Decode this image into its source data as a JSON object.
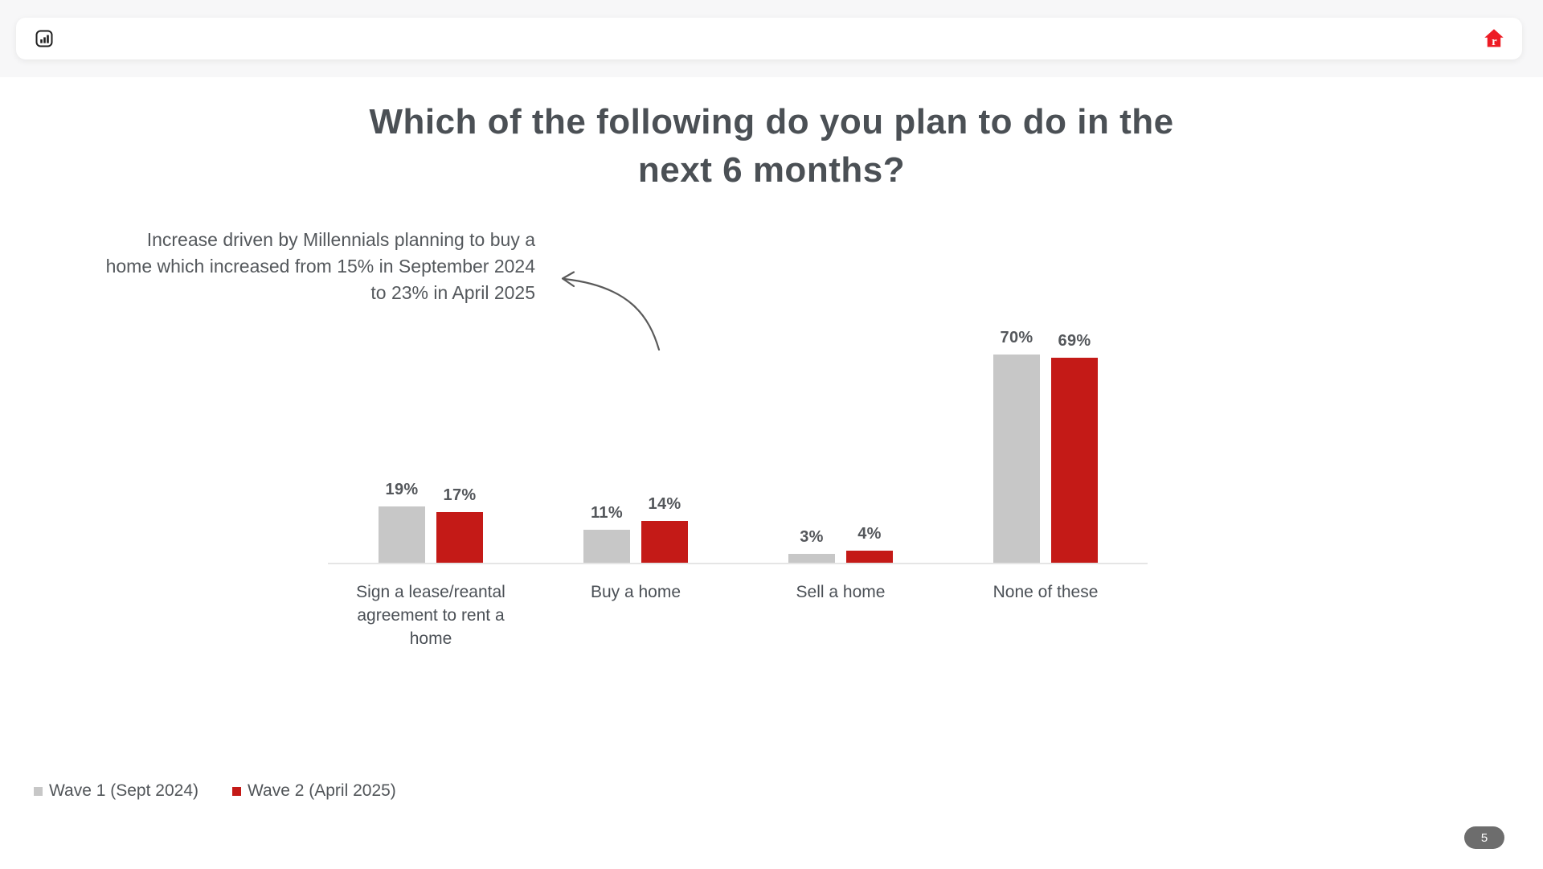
{
  "header": {
    "chart_icon": "bar-chart",
    "logo_letter": "r"
  },
  "title": {
    "lines": [
      "Which of the following do you plan to do in the",
      "next 6 months?"
    ]
  },
  "annotation": {
    "lines": [
      "Increase driven by Millennials planning to buy a",
      "home which increased from 15% in September 2024",
      "to 23% in April 2025"
    ]
  },
  "chart_data": {
    "type": "bar",
    "title": "Which of the following do you plan to do in the next 6 months?",
    "categories": [
      "Sign a lease/reantal agreement to rent a home",
      "Buy a home",
      "Sell a home",
      "None of these"
    ],
    "series": [
      {
        "name": "Wave 1 (Sept 2024)",
        "color": "#c7c7c7",
        "values": [
          19,
          11,
          3,
          70
        ]
      },
      {
        "name": "Wave 2 (April 2025)",
        "color": "#c41a17",
        "values": [
          17,
          14,
          4,
          69
        ]
      }
    ],
    "value_suffix": "%",
    "ylim": [
      0,
      100
    ],
    "grid": false,
    "y_axis_visible": false,
    "legend_position": "bottom-left"
  },
  "footer": {
    "page_number": "5"
  },
  "colors": {
    "bar_gray": "#c7c7c7",
    "bar_red": "#c41a17",
    "logo_red": "#ed1b24",
    "title_text": "#4b5055",
    "badge_bg": "#6d6d6d"
  }
}
